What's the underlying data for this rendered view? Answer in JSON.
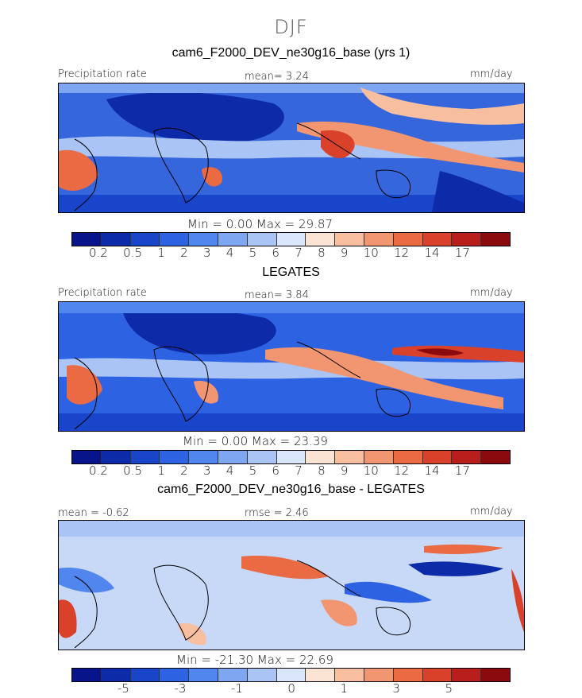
{
  "figure_title": "DJF",
  "units": "mm/day",
  "colors": {
    "precip": [
      "#08148a",
      "#0d2aa8",
      "#1845c9",
      "#2d63e3",
      "#5086ee",
      "#7ea6f1",
      "#aac4f5",
      "#d9e6fb",
      "#fce4d4",
      "#f7bfa0",
      "#f19670",
      "#ea6a44",
      "#d9412a",
      "#b81f1c",
      "#8a0a0e"
    ],
    "diff": [
      "#08148a",
      "#0d2aa8",
      "#1845c9",
      "#2d63e3",
      "#5086ee",
      "#7ea6f1",
      "#aac4f5",
      "#d9e6fb",
      "#fce4d4",
      "#f7bfa0",
      "#f19670",
      "#ea6a44",
      "#d9412a",
      "#b81f1c",
      "#8a0a0e"
    ]
  },
  "panels": [
    {
      "title": "cam6_F2000_DEV_ne30g16_base (yrs 1)",
      "left_label": "Precipitation rate",
      "stat_text": "mean=   3.24",
      "right_label": "mm/day",
      "minmax_text": "Min =    0.00  Max =   29.87",
      "tick_labels": [
        "0.2",
        "0.5",
        "1",
        "2",
        "3",
        "4",
        "5",
        "6",
        "7",
        "8",
        "9",
        "10",
        "12",
        "14",
        "17"
      ]
    },
    {
      "title": "LEGATES",
      "left_label": "Precipitation rate",
      "stat_text": "mean=   3.84",
      "right_label": "mm/day",
      "minmax_text": "Min =    0.00  Max =   23.39",
      "tick_labels": [
        "0.2",
        "0.5",
        "1",
        "2",
        "3",
        "4",
        "5",
        "6",
        "7",
        "8",
        "9",
        "10",
        "12",
        "14",
        "17"
      ]
    },
    {
      "title": "cam6_F2000_DEV_ne30g16_base - LEGATES",
      "left_label": "mean =   -0.62",
      "stat_text": "rmse =    2.46",
      "right_label": "mm/day",
      "minmax_text": "Min = -21.30  Max =  22.69",
      "tick_labels": [
        "-5",
        "-3",
        "-1",
        "0",
        "1",
        "3",
        "5"
      ]
    }
  ],
  "chart_data": [
    {
      "type": "heatmap",
      "title": "cam6_F2000_DEV_ne30g16_base (yrs 1)",
      "variable": "Precipitation rate",
      "units": "mm/day",
      "mean": 3.24,
      "min": 0.0,
      "max": 29.87,
      "contour_levels": [
        0.2,
        0.5,
        1,
        2,
        3,
        4,
        5,
        6,
        7,
        8,
        9,
        10,
        12,
        14,
        17
      ]
    },
    {
      "type": "heatmap",
      "title": "LEGATES",
      "variable": "Precipitation rate",
      "units": "mm/day",
      "mean": 3.84,
      "min": 0.0,
      "max": 23.39,
      "contour_levels": [
        0.2,
        0.5,
        1,
        2,
        3,
        4,
        5,
        6,
        7,
        8,
        9,
        10,
        12,
        14,
        17
      ]
    },
    {
      "type": "heatmap",
      "title": "cam6_F2000_DEV_ne30g16_base - LEGATES",
      "units": "mm/day",
      "mean": -0.62,
      "rmse": 2.46,
      "min": -21.3,
      "max": 22.69,
      "contour_levels": [
        -7,
        -6,
        -5,
        -4,
        -3,
        -2,
        -1,
        0,
        1,
        2,
        3,
        4,
        5,
        6
      ],
      "tick_labels": [
        "-5",
        "-3",
        "-1",
        "0",
        "1",
        "3",
        "5"
      ]
    }
  ]
}
